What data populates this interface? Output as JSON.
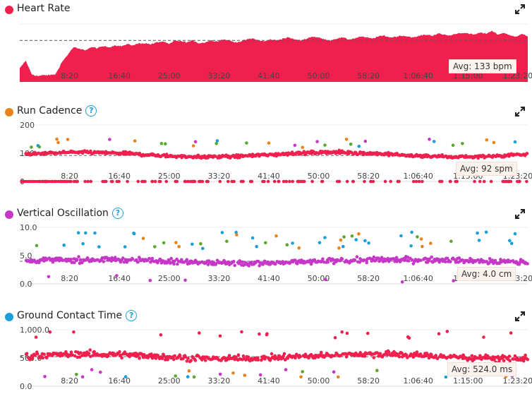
{
  "colors": {
    "red": "#f0204e",
    "orange": "#e8831a",
    "purple": "#c637c8",
    "blue": "#1a9fd9",
    "green": "#5aa82e"
  },
  "x_ticks": [
    "8:20",
    "16:40",
    "25:00",
    "33:20",
    "41:40",
    "50:00",
    "58:20",
    "1:06:40",
    "1:15:00",
    "1:23:20"
  ],
  "panels": [
    {
      "id": "heart-rate",
      "title": "Heart Rate",
      "dot_color": "#f0204e",
      "help": false,
      "avg_label": "Avg: 133 bpm",
      "y_ticks": []
    },
    {
      "id": "run-cadence",
      "title": "Run Cadence",
      "dot_color": "#e8831a",
      "help": true,
      "avg_label": "Avg: 92 spm",
      "y_ticks": [
        "200",
        "100",
        "0"
      ]
    },
    {
      "id": "vertical-oscillation",
      "title": "Vertical Oscillation",
      "dot_color": "#c637c8",
      "help": true,
      "avg_label": "Avg: 4.0 cm",
      "y_ticks": [
        "10.0",
        "5.0",
        "0.0"
      ]
    },
    {
      "id": "ground-contact-time",
      "title": "Ground Contact Time",
      "dot_color": "#1a9fd9",
      "help": true,
      "avg_label": "Avg: 524.0 ms",
      "y_ticks": [
        "1,000.0",
        "500.0",
        "0.0"
      ]
    }
  ],
  "chart_data": [
    {
      "type": "area",
      "title": "Heart Rate",
      "x_unit": "elapsed time",
      "x_range_seconds": [
        0,
        5100
      ],
      "average": 133,
      "series": [
        {
          "name": "Heart Rate",
          "x_seconds": [
            0,
            60,
            120,
            180,
            240,
            300,
            360,
            420,
            480,
            540,
            600,
            660,
            720,
            780,
            840,
            900,
            960,
            1020,
            1080,
            1140,
            1200,
            1260,
            1320,
            1380,
            1440,
            1500,
            1560,
            1620,
            1680,
            1740,
            1800,
            1860,
            1920,
            1980,
            2040,
            2100,
            2160,
            2220,
            2280,
            2340,
            2400,
            2460,
            2520,
            2580,
            2640,
            2700,
            2760,
            2820,
            2880,
            2940,
            3000,
            3060,
            3120,
            3180,
            3240,
            3300,
            3360,
            3420,
            3480,
            3540,
            3600,
            3660,
            3720,
            3780,
            3840,
            3900,
            3960,
            4020,
            4080,
            4140,
            4200,
            4260,
            4320,
            4380,
            4440,
            4500,
            4560,
            4620,
            4680,
            4740,
            4800,
            4860,
            4920,
            4980,
            5040,
            5100
          ],
          "values": [
            104,
            112,
            98,
            96,
            97,
            97,
            98,
            110,
            118,
            126,
            124,
            123,
            126,
            125,
            127,
            126,
            128,
            127,
            129,
            128,
            130,
            130,
            129,
            131,
            132,
            129,
            133,
            132,
            131,
            133,
            130,
            131,
            133,
            132,
            134,
            133,
            131,
            132,
            134,
            135,
            133,
            132,
            134,
            133,
            135,
            136,
            134,
            133,
            135,
            137,
            136,
            134,
            133,
            135,
            136,
            134,
            135,
            137,
            136,
            135,
            137,
            138,
            136,
            137,
            138,
            137,
            136,
            138,
            139,
            138,
            140,
            139,
            138,
            140,
            141,
            140,
            139,
            141,
            140,
            143,
            139,
            141,
            138,
            137,
            140,
            137
          ]
        }
      ]
    },
    {
      "type": "scatter",
      "title": "Run Cadence",
      "ylim": [
        0,
        200
      ],
      "y_ticks": [
        0,
        100,
        200
      ],
      "average": 92,
      "series": [
        {
          "name": "Run Cadence",
          "note": "dense per-second points, values mostly 75–120 spm with dropouts at 0"
        }
      ]
    },
    {
      "type": "scatter",
      "title": "Vertical Oscillation",
      "ylim": [
        0,
        10
      ],
      "y_ticks": [
        0,
        5,
        10
      ],
      "average": 4.0,
      "series": [
        {
          "name": "Vertical Oscillation",
          "note": "dense per-second points, values mostly 2.5–5.5 cm"
        }
      ]
    },
    {
      "type": "scatter",
      "title": "Ground Contact Time",
      "ylim": [
        0,
        1000
      ],
      "y_ticks": [
        0,
        500,
        1000
      ],
      "average": 524.0,
      "series": [
        {
          "name": "Ground Contact Time",
          "note": "dense per-second points, values mostly 400–750 ms"
        }
      ]
    }
  ]
}
